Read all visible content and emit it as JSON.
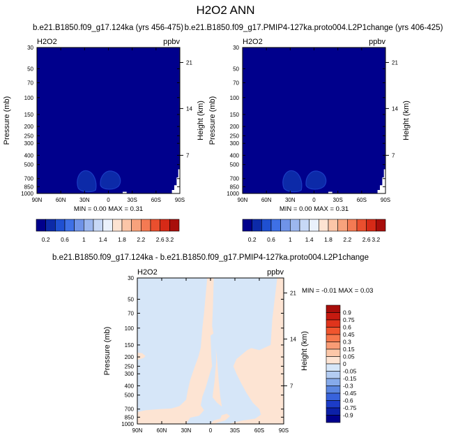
{
  "page_title": "H2O2 ANN",
  "chart_data": [
    {
      "type": "heatmap",
      "title": "b.e21.B1850.f09_g17.124ka (yrs 456-475)",
      "left_string": "H2O2",
      "right_string": "ppbv",
      "xlabel": "",
      "ylabel": "Pressure (mb)",
      "y2label": "Height (km)",
      "x_ticks": [
        "90N",
        "60N",
        "30N",
        "0",
        "30S",
        "60S",
        "90S"
      ],
      "x_tick_values": [
        90,
        60,
        30,
        0,
        -30,
        -60,
        -90
      ],
      "y_ticks": [
        "30",
        "50",
        "70",
        "100",
        "150",
        "200",
        "250",
        "300",
        "400",
        "500",
        "700",
        "850",
        "1000"
      ],
      "y_tick_values": [
        30,
        50,
        70,
        100,
        150,
        200,
        250,
        300,
        400,
        500,
        700,
        850,
        1000
      ],
      "y_scale": "log",
      "y_range": [
        1000,
        30
      ],
      "y2_ticks": [
        "21",
        "14",
        "7"
      ],
      "y2_tick_pressure_mb": [
        43,
        130,
        400
      ],
      "min_label": "MIN =   0.00   MAX =   0.31",
      "min": 0.0,
      "max": 0.31,
      "colorbar_labels": [
        "0.2",
        "0.6",
        "1",
        "1.4",
        "1.8",
        "2.2",
        "2.6",
        "3.2"
      ],
      "colorbar_colors": [
        "#00008c",
        "#0c2aa8",
        "#1f50d2",
        "#3e70e6",
        "#6f93e8",
        "#9cb7ef",
        "#c7d8f6",
        "#eaf1fc",
        "#fde3d2",
        "#fcc6a8",
        "#f8a27c",
        "#f47a53",
        "#ea4f2e",
        "#d62a17",
        "#a80e0b"
      ],
      "colorbar_orientation": "horizontal",
      "fill_color": "#00008c",
      "contour_color": "#1a3cc4"
    },
    {
      "type": "heatmap",
      "title": "b.e21.B1850.f09_g17.PMIP4-127ka.proto004.L2P1change (yrs 406-425)",
      "left_string": "H2O2",
      "right_string": "ppbv",
      "xlabel": "",
      "ylabel": "Pressure (mb)",
      "y2label": "Height (km)",
      "x_ticks": [
        "90N",
        "60N",
        "30N",
        "0",
        "30S",
        "60S",
        "90S"
      ],
      "x_tick_values": [
        90,
        60,
        30,
        0,
        -30,
        -60,
        -90
      ],
      "y_ticks": [
        "30",
        "50",
        "70",
        "100",
        "150",
        "200",
        "250",
        "300",
        "400",
        "500",
        "700",
        "850",
        "1000"
      ],
      "y_tick_values": [
        30,
        50,
        70,
        100,
        150,
        200,
        250,
        300,
        400,
        500,
        700,
        850,
        1000
      ],
      "y_scale": "log",
      "y_range": [
        1000,
        30
      ],
      "y2_ticks": [
        "21",
        "14",
        "7"
      ],
      "y2_tick_pressure_mb": [
        43,
        130,
        400
      ],
      "min_label": "MIN =   0.00   MAX =   0.31",
      "min": 0.0,
      "max": 0.31,
      "colorbar_labels": [
        "0.2",
        "0.6",
        "1",
        "1.4",
        "1.8",
        "2.2",
        "2.6",
        "3.2"
      ],
      "colorbar_colors": [
        "#00008c",
        "#0c2aa8",
        "#1f50d2",
        "#3e70e6",
        "#6f93e8",
        "#9cb7ef",
        "#c7d8f6",
        "#eaf1fc",
        "#fde3d2",
        "#fcc6a8",
        "#f8a27c",
        "#f47a53",
        "#ea4f2e",
        "#d62a17",
        "#a80e0b"
      ],
      "colorbar_orientation": "horizontal",
      "fill_color": "#00008c",
      "contour_color": "#1a3cc4"
    },
    {
      "type": "heatmap",
      "title": "b.e21.B1850.f09_g17.124ka - b.e21.B1850.f09_g17.PMIP4-127ka.proto004.L2P1change",
      "left_string": "H2O2",
      "right_string": "ppbv",
      "xlabel": "",
      "ylabel": "Pressure (mb)",
      "y2label": "Height (km)",
      "x_ticks": [
        "90N",
        "60N",
        "30N",
        "0",
        "30S",
        "60S",
        "90S"
      ],
      "x_tick_values": [
        90,
        60,
        30,
        0,
        -30,
        -60,
        -90
      ],
      "y_ticks": [
        "30",
        "50",
        "70",
        "100",
        "150",
        "200",
        "250",
        "300",
        "400",
        "500",
        "700",
        "850",
        "1000"
      ],
      "y_tick_values": [
        30,
        50,
        70,
        100,
        150,
        200,
        250,
        300,
        400,
        500,
        700,
        850,
        1000
      ],
      "y_scale": "log",
      "y_range": [
        1000,
        30
      ],
      "y2_ticks": [
        "21",
        "14",
        "7"
      ],
      "y2_tick_pressure_mb": [
        43,
        130,
        400
      ],
      "min_label": "MIN =  -0.01   MAX =   0.03",
      "min": -0.01,
      "max": 0.03,
      "colorbar_labels": [
        "0.9",
        "0.75",
        "0.6",
        "0.45",
        "0.3",
        "0.15",
        "0.05",
        "0",
        "-0.05",
        "-0.15",
        "-0.3",
        "-0.45",
        "-0.6",
        "-0.75",
        "-0.9"
      ],
      "colorbar_colors": [
        "#a80e0b",
        "#c61a10",
        "#e0341c",
        "#f0552e",
        "#f6774c",
        "#f99c75",
        "#fcc7a8",
        "#fde4d3",
        "#d6e6f8",
        "#b3ccf2",
        "#86aaea",
        "#5b86e0",
        "#3863dc",
        "#1c3cc8",
        "#0c20a8",
        "#00008c"
      ],
      "colorbar_orientation": "vertical",
      "positive_color": "#fde4d3",
      "negative_color": "#d6e6f8"
    }
  ]
}
